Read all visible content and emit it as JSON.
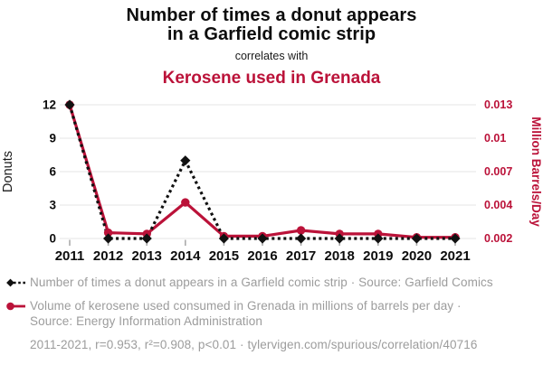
{
  "header": {
    "title_line1": "Number of times a donut appears",
    "title_line2": "in a Garfield comic strip",
    "connector": "correlates with",
    "subtitle": "Kerosene used in Grenada"
  },
  "colors": {
    "accent_red": "#bb1239",
    "series_black": "#111111",
    "legend_gray": "#9c9c9c",
    "gridline": "#ebebeb",
    "tick_mark": "#ababab",
    "axis_text": "#0d0d0d"
  },
  "chart_data": {
    "type": "line",
    "title": "Number of times a donut appears in a Garfield comic strip correlates with Kerosene used in Grenada",
    "x": [
      2011,
      2012,
      2013,
      2014,
      2015,
      2016,
      2017,
      2018,
      2019,
      2020,
      2021
    ],
    "x_ticks": [
      "2011",
      "2012",
      "2013",
      "2014",
      "2015",
      "2016",
      "2017",
      "2018",
      "2019",
      "2020",
      "2021"
    ],
    "series": [
      {
        "name": "Number of times a donut appears in a Garfield comic strip",
        "axis": "left",
        "style": "dashed",
        "marker": "diamond",
        "color": "#111111",
        "values": [
          12,
          0,
          0,
          7,
          0,
          0,
          0,
          0,
          0,
          0,
          0
        ]
      },
      {
        "name": "Volume of kerosene used consumed in Grenada in millions of barrels per day",
        "axis": "right",
        "style": "solid",
        "marker": "circle",
        "color": "#bb1239",
        "values": [
          0.013,
          0.002,
          0.0019,
          0.0046,
          0.0017,
          0.0017,
          0.0022,
          0.0019,
          0.0019,
          0.0016,
          0.0016
        ]
      }
    ],
    "left_axis": {
      "label": "Donuts",
      "ticks": [
        0,
        3,
        6,
        9,
        12
      ],
      "range": [
        0,
        12
      ]
    },
    "right_axis": {
      "label": "Million Barrels/Day",
      "tick_labels": [
        "0.002",
        "0.004",
        "0.007",
        "0.01",
        "0.013"
      ],
      "range": [
        0.0015,
        0.013
      ]
    },
    "grid": true,
    "legend_position": "bottom"
  },
  "legend": {
    "series1": "Number of times a donut appears in a Garfield comic strip · Source: Garfield Comics",
    "series2": "Volume of kerosene used consumed in Grenada in millions of barrels per day · Source: Energy Information Administration",
    "stats": "2011-2021, r=0.953, r²=0.908, p<0.01 · tylervigen.com/spurious/correlation/40716"
  }
}
